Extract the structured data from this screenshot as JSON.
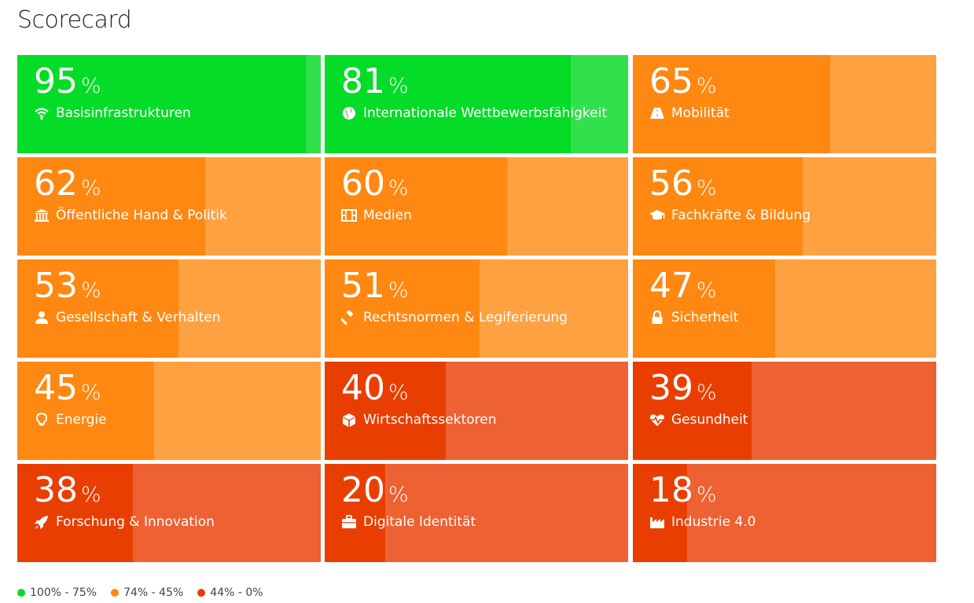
{
  "title": "Scorecard",
  "colors": {
    "green": {
      "base": "#30e14c",
      "fill": "#04dc27"
    },
    "orange": {
      "base": "#fea141",
      "fill": "#fe8811"
    },
    "red": {
      "base": "#ee6133",
      "fill": "#e93e02"
    }
  },
  "legend": [
    {
      "label": "100% - 75%",
      "color": "#04dc27"
    },
    {
      "label": "74% - 45%",
      "color": "#fe8811"
    },
    {
      "label": "44% - 0%",
      "color": "#e93e02"
    }
  ],
  "chart_data": {
    "type": "bar",
    "title": "Scorecard",
    "unit": "%",
    "ylim": [
      0,
      100
    ],
    "categories": [
      "Basisinfrastrukturen",
      "Internationale Wettbewerbsfähigkeit",
      "Mobilität",
      "Öffentliche Hand & Politik",
      "Medien",
      "Fachkräfte & Bildung",
      "Gesellschaft & Verhalten",
      "Rechtsnormen & Legiferierung",
      "Sicherheit",
      "Energie",
      "Wirtschaftssektoren",
      "Gesundheit",
      "Forschung & Innovation",
      "Digitale Identität",
      "Industrie 4.0"
    ],
    "values": [
      95,
      81,
      65,
      62,
      60,
      56,
      53,
      51,
      47,
      45,
      40,
      39,
      38,
      20,
      18
    ],
    "icons": [
      "wifi-icon",
      "globe-icon",
      "road-icon",
      "institution-icon",
      "film-icon",
      "graduation-cap-icon",
      "user-icon",
      "gavel-icon",
      "lock-icon",
      "lightbulb-icon",
      "cube-icon",
      "heartbeat-icon",
      "rocket-icon",
      "briefcase-icon",
      "industry-icon"
    ],
    "legend": [
      "100% - 75%",
      "74% - 45%",
      "44% - 0%"
    ]
  }
}
